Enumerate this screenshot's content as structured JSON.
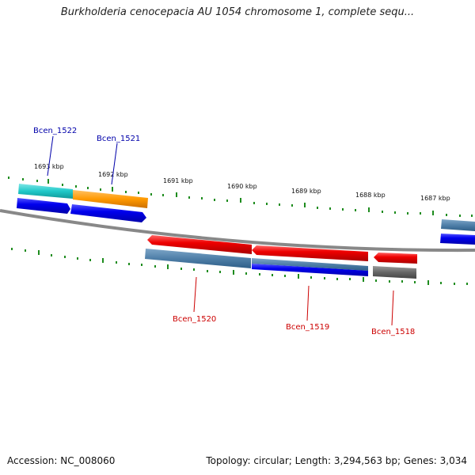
{
  "title": "Burkholderia cenocepacia AU 1054 chromosome 1, complete sequ...",
  "footer": {
    "accession": "Accession: NC_008060",
    "summary": "Topology: circular; Length: 3,294,563 bp; Genes: 3,034"
  },
  "ruler_labels": [
    "1693 kbp",
    "1692 kbp",
    "1691 kbp",
    "1690 kbp",
    "1689 kbp",
    "1688 kbp",
    "1687 kbp"
  ],
  "gene_labels": {
    "top": [
      "Bcen_1522",
      "Bcen_1521"
    ],
    "bottom": [
      "Bcen_1520",
      "Bcen_1519",
      "Bcen_1518"
    ]
  },
  "colors": {
    "forward_label": "#0000aa",
    "reverse_label": "#cc0000",
    "tick": "#1e8c1e",
    "backbone": "#888888",
    "cds_forward": "#0000ee",
    "cds_reverse": "#ee0000",
    "gene_steel": "#4f7fa8",
    "gene_cyan": "#20c8c8",
    "gene_orange": "#ff9900",
    "gene_gray": "#666666"
  }
}
